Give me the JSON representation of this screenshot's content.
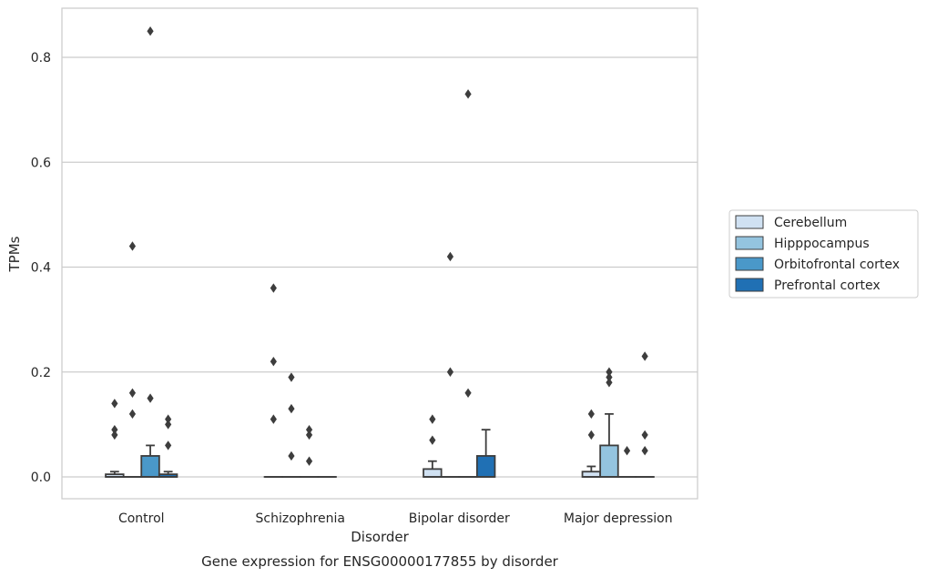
{
  "chart_data": {
    "type": "box",
    "title": "Gene expression for ENSG00000177855 by disorder",
    "xlabel": "Disorder",
    "ylabel": "TPMs",
    "categories": [
      "Control",
      "Schizophrenia",
      "Bipolar disorder",
      "Major depression"
    ],
    "ylim": [
      -0.04,
      0.895
    ],
    "yticks": [
      0.0,
      0.2,
      0.4,
      0.6,
      0.8
    ],
    "ytick_labels": [
      "0.0",
      "0.2",
      "0.4",
      "0.6",
      "0.8"
    ],
    "grid": "horizontal",
    "legend_placement": "right-outside",
    "series": [
      {
        "name": "Cerebellum",
        "color": "#d0e1f2",
        "boxes": [
          {
            "q1": 0.0,
            "median": 0.0,
            "q3": 0.005,
            "whislo": 0.0,
            "whishi": 0.01,
            "fliers": [
              0.08,
              0.09,
              0.14
            ]
          },
          {
            "q1": 0.0,
            "median": 0.0,
            "q3": 0.0,
            "whislo": 0.0,
            "whishi": 0.0,
            "fliers": [
              0.11,
              0.22,
              0.36
            ]
          },
          {
            "q1": 0.0,
            "median": 0.0,
            "q3": 0.015,
            "whislo": 0.0,
            "whishi": 0.03,
            "fliers": [
              0.07,
              0.11
            ]
          },
          {
            "q1": 0.0,
            "median": 0.0,
            "q3": 0.01,
            "whislo": 0.0,
            "whishi": 0.02,
            "fliers": [
              0.08,
              0.12
            ]
          }
        ]
      },
      {
        "name": "Hipppocampus",
        "color": "#94c4df",
        "boxes": [
          {
            "q1": 0.0,
            "median": 0.0,
            "q3": 0.0,
            "whislo": 0.0,
            "whishi": 0.0,
            "fliers": [
              0.12,
              0.16,
              0.44
            ]
          },
          {
            "q1": 0.0,
            "median": 0.0,
            "q3": 0.0,
            "whislo": 0.0,
            "whishi": 0.0,
            "fliers": [
              0.04,
              0.13,
              0.19
            ]
          },
          {
            "q1": 0.0,
            "median": 0.0,
            "q3": 0.0,
            "whislo": 0.0,
            "whishi": 0.0,
            "fliers": [
              0.2,
              0.42
            ]
          },
          {
            "q1": 0.0,
            "median": 0.0,
            "q3": 0.06,
            "whislo": 0.0,
            "whishi": 0.12,
            "fliers": [
              0.18,
              0.19,
              0.2
            ]
          }
        ]
      },
      {
        "name": "Orbitofrontal cortex",
        "color": "#4a98c9",
        "boxes": [
          {
            "q1": 0.0,
            "median": 0.0,
            "q3": 0.04,
            "whislo": 0.0,
            "whishi": 0.06,
            "fliers": [
              0.15,
              0.85
            ]
          },
          {
            "q1": 0.0,
            "median": 0.0,
            "q3": 0.0,
            "whislo": 0.0,
            "whishi": 0.0,
            "fliers": [
              0.03,
              0.08,
              0.09
            ]
          },
          {
            "q1": 0.0,
            "median": 0.0,
            "q3": 0.0,
            "whislo": 0.0,
            "whishi": 0.0,
            "fliers": [
              0.16,
              0.73
            ]
          },
          {
            "q1": 0.0,
            "median": 0.0,
            "q3": 0.0,
            "whislo": 0.0,
            "whishi": 0.0,
            "fliers": [
              0.05
            ]
          }
        ]
      },
      {
        "name": "Prefrontal cortex",
        "color": "#2070b4",
        "boxes": [
          {
            "q1": 0.0,
            "median": 0.0,
            "q3": 0.005,
            "whislo": 0.0,
            "whishi": 0.01,
            "fliers": [
              0.06,
              0.1,
              0.11
            ]
          },
          {
            "q1": 0.0,
            "median": 0.0,
            "q3": 0.0,
            "whislo": 0.0,
            "whishi": 0.0,
            "fliers": []
          },
          {
            "q1": 0.0,
            "median": 0.0,
            "q3": 0.04,
            "whislo": 0.0,
            "whishi": 0.09,
            "fliers": []
          },
          {
            "q1": 0.0,
            "median": 0.0,
            "q3": 0.0,
            "whislo": 0.0,
            "whishi": 0.0,
            "fliers": [
              0.05,
              0.08,
              0.23
            ]
          }
        ]
      }
    ]
  }
}
